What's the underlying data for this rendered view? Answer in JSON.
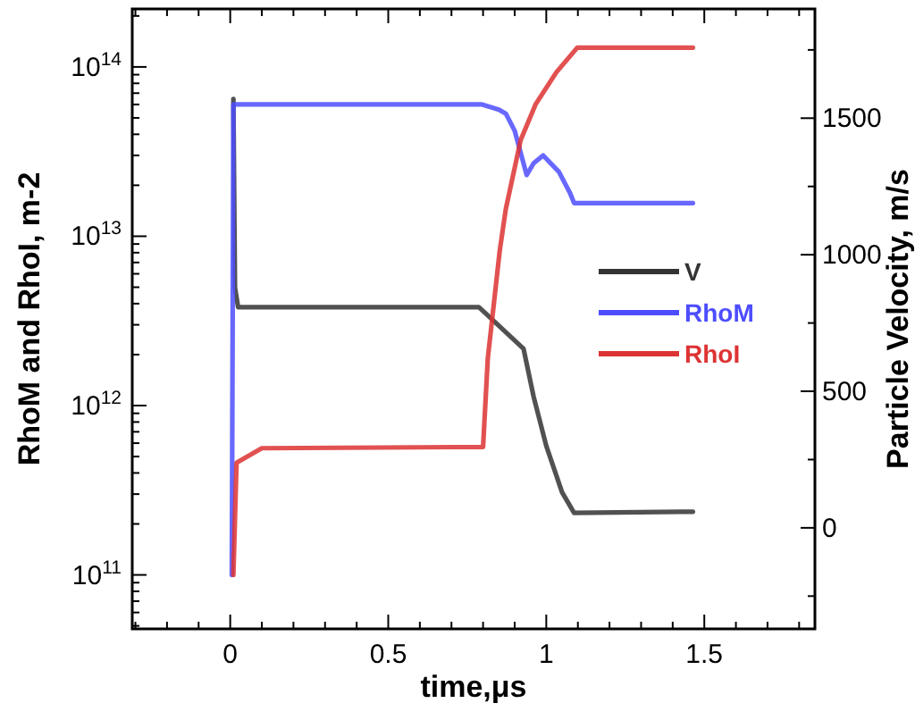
{
  "chart_data": {
    "type": "line",
    "xlabel": "time,μs",
    "ylabel": "RhoM and RhoI, m-2",
    "y2label": "Particle Velocity, m/s",
    "log": "y",
    "legend": "right",
    "grid": false,
    "line_style": "solid",
    "marker": "none",
    "xlim": [
      -0.31,
      1.85
    ],
    "xticks": [
      {
        "value": -0.3,
        "label": null
      },
      {
        "value": -0.2,
        "label": null
      },
      {
        "value": -0.1,
        "label": null
      },
      0,
      {
        "value": 0.1,
        "label": null
      },
      {
        "value": 0.2,
        "label": null
      },
      {
        "value": 0.3,
        "label": null
      },
      {
        "value": 0.4,
        "label": null
      },
      0.5,
      {
        "value": 0.6,
        "label": null
      },
      {
        "value": 0.7,
        "label": null
      },
      {
        "value": 0.8,
        "label": null
      },
      {
        "value": 0.9,
        "label": null
      },
      1,
      {
        "value": 1.1,
        "label": null
      },
      {
        "value": 1.2,
        "label": null
      },
      {
        "value": 1.3,
        "label": null
      },
      {
        "value": 1.4,
        "label": null
      },
      1.5,
      {
        "value": 1.6,
        "label": null
      },
      {
        "value": 1.7,
        "label": null
      },
      {
        "value": 1.8,
        "label": null
      }
    ],
    "ylim": [
      48000000000.0,
      220000000000000.0
    ],
    "yticks": [
      {
        "value": 50000000000.0,
        "label": null
      },
      {
        "value": 60000000000.0,
        "label": null
      },
      {
        "value": 70000000000.0,
        "label": null
      },
      {
        "value": 80000000000.0,
        "label": null
      },
      {
        "value": 90000000000.0,
        "label": null
      },
      {
        "value": 100000000000.0,
        "label": "10$^{11}$"
      },
      {
        "value": 200000000000.0,
        "label": null
      },
      {
        "value": 300000000000.0,
        "label": null
      },
      {
        "value": 400000000000.0,
        "label": null
      },
      {
        "value": 500000000000.0,
        "label": null
      },
      {
        "value": 600000000000.0,
        "label": null
      },
      {
        "value": 700000000000.0,
        "label": null
      },
      {
        "value": 800000000000.0,
        "label": null
      },
      {
        "value": 900000000000.0,
        "label": null
      },
      {
        "value": 1000000000000.0,
        "label": "10$^{12}$"
      },
      {
        "value": 2000000000000.0,
        "label": null
      },
      {
        "value": 3000000000000.0,
        "label": null
      },
      {
        "value": 4000000000000.0,
        "label": null
      },
      {
        "value": 5000000000000.0,
        "label": null
      },
      {
        "value": 6000000000000.0,
        "label": null
      },
      {
        "value": 7000000000000.0,
        "label": null
      },
      {
        "value": 8000000000000.0,
        "label": null
      },
      {
        "value": 9000000000000.0,
        "label": null
      },
      {
        "value": 10000000000000.0,
        "label": "10$^{13}$"
      },
      {
        "value": 20000000000000.0,
        "label": null
      },
      {
        "value": 30000000000000.0,
        "label": null
      },
      {
        "value": 40000000000000.0,
        "label": null
      },
      {
        "value": 50000000000000.0,
        "label": null
      },
      {
        "value": 60000000000000.0,
        "label": null
      },
      {
        "value": 70000000000000.0,
        "label": null
      },
      {
        "value": 80000000000000.0,
        "label": null
      },
      {
        "value": 90000000000000.0,
        "label": null
      },
      {
        "value": 100000000000000.0,
        "label": "10$^{14}$"
      },
      {
        "value": 200000000000000.0,
        "label": null
      }
    ],
    "y2lim": [
      -370,
      1900
    ],
    "y2ticks": [
      {
        "value": -250,
        "label": null
      },
      0,
      {
        "value": 250,
        "label": null
      },
      500,
      {
        "value": 750,
        "label": null
      },
      1000,
      {
        "value": 1250,
        "label": null
      },
      1500,
      {
        "value": 1750,
        "label": null
      }
    ],
    "series": [
      {
        "name": "V",
        "color": "#333333",
        "axis": "y2",
        "x": [
          0.01,
          0.015,
          0.025,
          0.787,
          0.85,
          0.928,
          0.96,
          1.0,
          1.05,
          1.088,
          1.464
        ],
        "values": [
          1570,
          880,
          808,
          808,
          740,
          656,
          480,
          300,
          130,
          55,
          59
        ]
      },
      {
        "name": "RhoM",
        "color": "#4d4dff",
        "x": [
          0.005,
          0.01,
          0.797,
          0.85,
          0.872,
          0.9,
          0.938,
          0.96,
          0.99,
          1.04,
          1.075,
          1.088,
          1.464
        ],
        "values": [
          100000000000.0,
          60000000000000.0,
          60000000000000.0,
          56000000000000.0,
          53000000000000.0,
          42000000000000.0,
          23000000000000.0,
          27000000000000.0,
          30000000000000.0,
          24000000000000.0,
          18000000000000.0,
          15700000000000.0,
          15700000000000.0
        ]
      },
      {
        "name": "RhoI",
        "color": "#dd3333",
        "x": [
          0.01,
          0.02,
          0.1,
          0.8,
          0.815,
          0.853,
          0.872,
          0.919,
          0.966,
          1.032,
          1.098,
          1.464
        ],
        "values": [
          100000000000.0,
          460000000000.0,
          560000000000.0,
          570000000000.0,
          1900000000000.0,
          8300000000000.0,
          14500000000000.0,
          37000000000000.0,
          60000000000000.0,
          93000000000000.0,
          130000000000000.0,
          130000000000000.0
        ]
      }
    ]
  }
}
